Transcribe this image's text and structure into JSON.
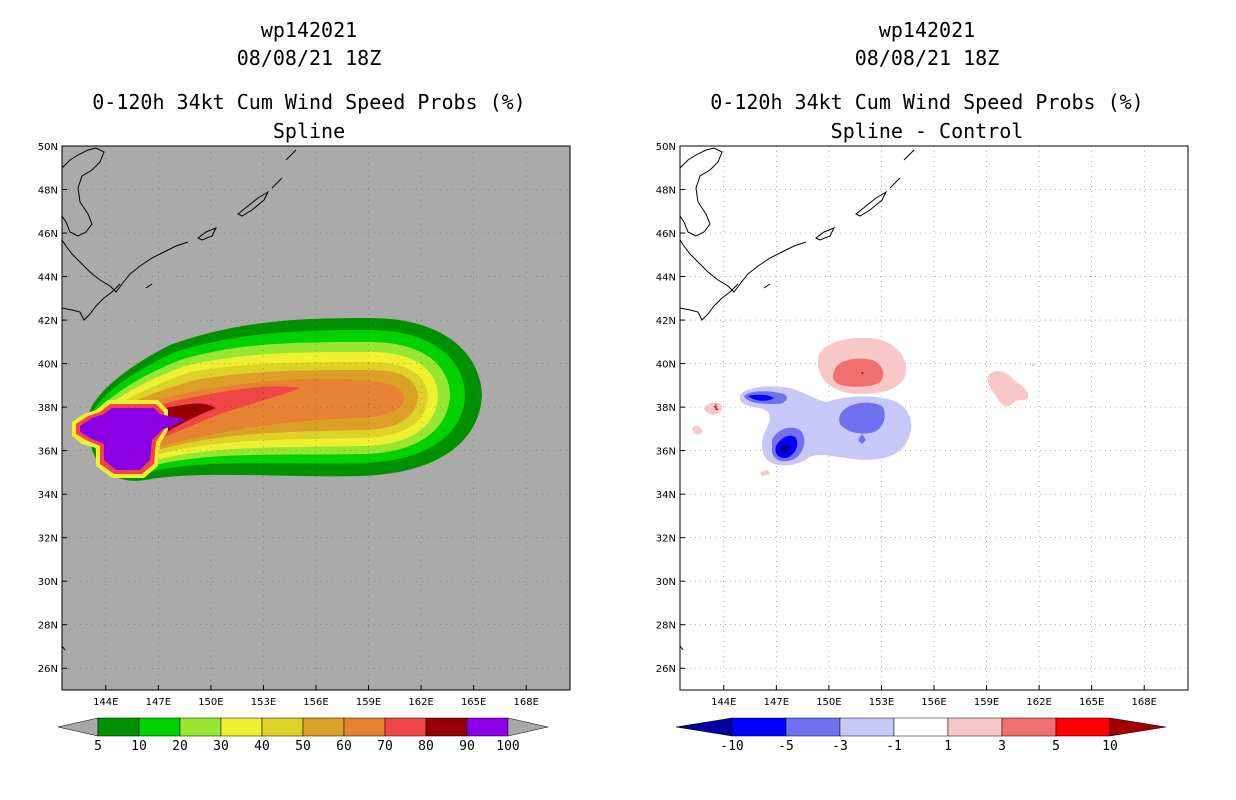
{
  "left_panel": {
    "storm_id": "wp142021",
    "datetime": "08/08/21 18Z",
    "product": "0-120h 34kt Cum Wind Speed Probs (%)",
    "subtitle": "Spline",
    "colorbar": {
      "labels": [
        "5",
        "10",
        "20",
        "30",
        "40",
        "50",
        "60",
        "70",
        "80",
        "90",
        "100"
      ],
      "colors": [
        "#009100",
        "#00d200",
        "#96e632",
        "#f0f032",
        "#dcd228",
        "#dca028",
        "#e68232",
        "#f04646",
        "#960000",
        "#8c00e6"
      ],
      "end_color": "#a8a8a8"
    }
  },
  "right_panel": {
    "storm_id": "wp142021",
    "datetime": "08/08/21 18Z",
    "product": "0-120h 34kt Cum Wind Speed Probs (%)",
    "subtitle": "Spline - Control",
    "colorbar": {
      "labels": [
        "-10",
        "-5",
        "-3",
        "-1",
        "1",
        "3",
        "5",
        "10"
      ],
      "colors": [
        "#0000a0",
        "#0000ff",
        "#7070f0",
        "#c8c8f8",
        "#ffffff",
        "#f8c8c8",
        "#f07070",
        "#ff0000",
        "#a00000"
      ]
    }
  },
  "map": {
    "lat_labels": [
      "50N",
      "48N",
      "46N",
      "44N",
      "42N",
      "40N",
      "38N",
      "36N",
      "34N",
      "32N",
      "30N",
      "28N",
      "26N"
    ],
    "lon_labels": [
      "144E",
      "147E",
      "150E",
      "153E",
      "156E",
      "159E",
      "162E",
      "165E",
      "168E"
    ],
    "background": "#aaaaaa"
  }
}
